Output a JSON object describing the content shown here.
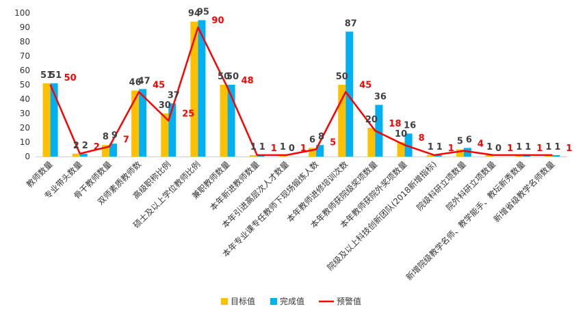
{
  "chart_data": {
    "type": "bar",
    "categories": [
      "教师数量",
      "专业带头数量",
      "骨干教师数量",
      "双师素质教师数",
      "高级职称比例",
      "硕士及以上学位教师比例",
      "兼职教师数量",
      "本年新进教师数量",
      "本年引进高层次人才数量",
      "本年专业课专任教师下现场锻炼人数",
      "本年教师进修培训次数",
      "本年教师获院级奖项数量",
      "本年教师获院外奖项数量",
      "院级及以上科技创新团队(2018新增指标)",
      "院级科研立项数量",
      "院外科研立项数量",
      "新增院级教学名师、教学能手、教坛新秀数量",
      "新增省级教学名师数量"
    ],
    "series": [
      {
        "name": "目标值",
        "type": "bar",
        "values": [
          51,
          2,
          8,
          46,
          30,
          94,
          50,
          1,
          1,
          6,
          50,
          20,
          10,
          1,
          5,
          1,
          1,
          1
        ]
      },
      {
        "name": "完成值",
        "type": "bar",
        "values": [
          51,
          2,
          9,
          47,
          37,
          95,
          50,
          1,
          0,
          8,
          87,
          36,
          16,
          1,
          6,
          0,
          1,
          1
        ]
      },
      {
        "name": "预警值",
        "type": "line",
        "values": [
          50,
          2,
          7,
          45,
          25,
          90,
          48,
          1,
          1,
          5,
          45,
          18,
          8,
          1,
          4,
          1,
          1,
          1
        ]
      }
    ],
    "ylim": [
      0,
      100
    ],
    "yticks": [
      0,
      10,
      20,
      30,
      40,
      50,
      60,
      70,
      80,
      90,
      100
    ],
    "grid": false,
    "legend": "bottom-center",
    "colors": {
      "target": "#FFC000",
      "actual": "#00B0F0",
      "warning": "#FF0000",
      "label": "#404040"
    }
  }
}
